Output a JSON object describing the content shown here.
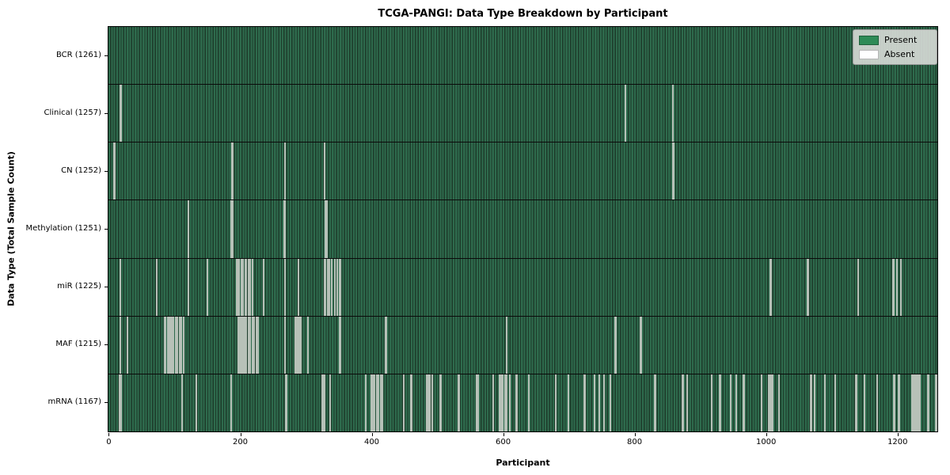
{
  "chart_data": {
    "type": "heatmap",
    "title": "TCGA-PANGI: Data Type Breakdown by Participant",
    "xlabel": "Participant",
    "ylabel": "Data Type (Total Sample Count)",
    "x_ticks": [
      0,
      200,
      400,
      600,
      800,
      1000,
      1200
    ],
    "n_participants": 1261,
    "grid": "row separators only",
    "legend_position": "upper right",
    "legend": [
      {
        "label": "Present",
        "color": "#2e8b57"
      },
      {
        "label": "Absent",
        "color": "#ffffff"
      }
    ],
    "colors": {
      "present": "#2e8b57",
      "present_rendered_dark": "#2e6b4d",
      "cell_edge": "#1d3b2a",
      "absent_stripe": "#b7c1b8",
      "frame": "#000000",
      "legend_bg": "#d8dcd7"
    },
    "rows": [
      {
        "label": "BCR (1261)",
        "data_type": "BCR",
        "total": 1261,
        "absent_count": 0,
        "absent_at": []
      },
      {
        "label": "Clinical (1257)",
        "data_type": "Clinical",
        "total": 1257,
        "absent_count": 4,
        "absent_at": [
          18,
          19,
          786,
          859
        ]
      },
      {
        "label": "CN (1252)",
        "data_type": "CN",
        "total": 1252,
        "absent_count": 9,
        "absent_at": [
          8,
          9,
          188,
          189,
          268,
          269,
          329,
          859,
          860
        ]
      },
      {
        "label": "Methylation (1251)",
        "data_type": "Methylation",
        "total": 1251,
        "absent_count": 10,
        "absent_at": [
          122,
          187,
          188,
          189,
          267,
          268,
          269,
          330,
          331,
          332
        ]
      },
      {
        "label": "miR (1225)",
        "data_type": "miR",
        "total": 1225,
        "absent_count": 36,
        "absent_at": [
          18,
          73,
          122,
          150,
          195,
          196,
          199,
          202,
          205,
          208,
          210,
          213,
          216,
          219,
          236,
          268,
          289,
          329,
          330,
          333,
          336,
          340,
          344,
          348,
          352,
          353,
          1007,
          1008,
          1064,
          1065,
          1141,
          1194,
          1195,
          1200,
          1205,
          1206
        ]
      },
      {
        "label": "MAF (1215)",
        "data_type": "MAF",
        "total": 1215,
        "absent_count": 46,
        "absent_at": [
          18,
          29,
          86,
          87,
          90,
          91,
          93,
          94,
          96,
          99,
          102,
          105,
          108,
          111,
          114,
          197,
          199,
          201,
          204,
          205,
          207,
          210,
          213,
          216,
          219,
          222,
          225,
          227,
          268,
          269,
          284,
          285,
          288,
          290,
          293,
          303,
          304,
          352,
          353,
          422,
          423,
          606,
          771,
          772,
          809,
          810
        ]
      },
      {
        "label": "mRNA (1167)",
        "data_type": "mRNA",
        "total": 1167,
        "absent_count": 94,
        "absent_at": [
          17,
          19,
          112,
          134,
          187,
          270,
          271,
          325,
          326,
          329,
          337,
          391,
          400,
          402,
          405,
          408,
          411,
          414,
          417,
          449,
          460,
          461,
          484,
          486,
          489,
          492,
          505,
          506,
          532,
          533,
          560,
          561,
          562,
          585,
          595,
          597,
          600,
          603,
          606,
          610,
          620,
          621,
          640,
          680,
          700,
          724,
          725,
          739,
          747,
          754,
          763,
          831,
          832,
          873,
          874,
          880,
          918,
          930,
          931,
          946,
          955,
          966,
          967,
          993,
          1005,
          1006,
          1008,
          1010,
          1020,
          1068,
          1069,
          1074,
          1090,
          1105,
          1106,
          1137,
          1138,
          1150,
          1169,
          1195,
          1196,
          1202,
          1203,
          1222,
          1224,
          1226,
          1228,
          1230,
          1232,
          1234,
          1247,
          1248,
          1259,
          1260
        ]
      }
    ]
  }
}
